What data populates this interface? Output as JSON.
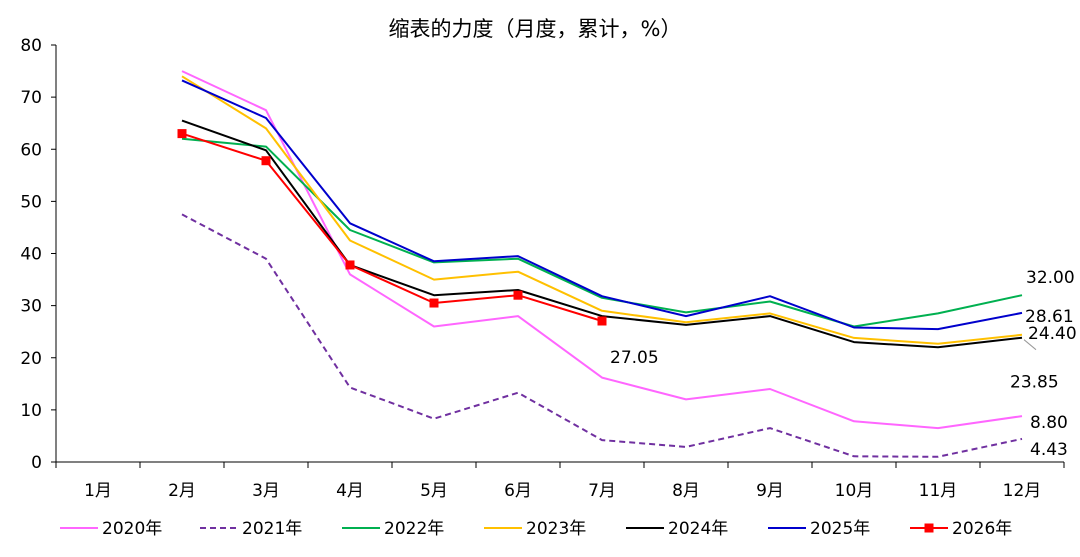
{
  "chart_data": {
    "type": "line",
    "title": "缩表的力度（月度，累计，%）",
    "xlabel": "",
    "ylabel": "",
    "categories": [
      "1月",
      "2月",
      "3月",
      "4月",
      "5月",
      "6月",
      "7月",
      "8月",
      "9月",
      "10月",
      "11月",
      "12月"
    ],
    "ylim": [
      0,
      80
    ],
    "yticks": [
      "0",
      "10",
      "20",
      "30",
      "40",
      "50",
      "60",
      "70",
      "80"
    ],
    "grid": false,
    "legend_position": "bottom",
    "series": [
      {
        "name": "2020年",
        "color": "#ff66ff",
        "dash": "solid",
        "values": [
          null,
          75.0,
          67.5,
          36.0,
          26.0,
          28.0,
          16.2,
          12.0,
          14.0,
          7.8,
          6.5,
          8.8
        ]
      },
      {
        "name": "2021年",
        "color": "#7030a0",
        "dash": "dashed",
        "values": [
          null,
          47.5,
          39.0,
          14.3,
          8.3,
          13.3,
          4.2,
          2.9,
          6.5,
          1.1,
          1.0,
          4.43
        ]
      },
      {
        "name": "2022年",
        "color": "#00b050",
        "dash": "solid",
        "values": [
          null,
          62.0,
          60.5,
          44.5,
          38.3,
          39.0,
          31.5,
          28.7,
          30.8,
          26.0,
          28.5,
          32.0
        ]
      },
      {
        "name": "2023年",
        "color": "#ffc000",
        "dash": "solid",
        "values": [
          null,
          74.0,
          64.0,
          42.5,
          35.0,
          36.5,
          29.0,
          26.8,
          28.5,
          23.8,
          22.7,
          24.4
        ]
      },
      {
        "name": "2024年",
        "color": "#000000",
        "dash": "solid",
        "values": [
          null,
          65.5,
          59.8,
          37.8,
          32.0,
          33.0,
          28.0,
          26.3,
          28.0,
          23.0,
          22.0,
          23.85
        ]
      },
      {
        "name": "2025年",
        "color": "#0000cc",
        "dash": "solid",
        "values": [
          null,
          73.2,
          66.0,
          45.8,
          38.5,
          39.5,
          31.8,
          28.0,
          31.8,
          25.8,
          25.5,
          28.61
        ]
      },
      {
        "name": "2026年",
        "color": "#ff0000",
        "dash": "solid",
        "marker": "square",
        "values": [
          null,
          63.0,
          57.8,
          37.8,
          30.5,
          32.0,
          27.05,
          null,
          null,
          null,
          null,
          null
        ]
      }
    ],
    "data_labels": [
      {
        "text": "32.00",
        "series": "2022年"
      },
      {
        "text": "28.61",
        "series": "2025年"
      },
      {
        "text": "24.40",
        "series": "2023年"
      },
      {
        "text": "23.85",
        "series": "2024年"
      },
      {
        "text": "8.80",
        "series": "2020年"
      },
      {
        "text": "4.43",
        "series": "2021年"
      },
      {
        "text": "27.05",
        "series": "2026年"
      }
    ]
  }
}
